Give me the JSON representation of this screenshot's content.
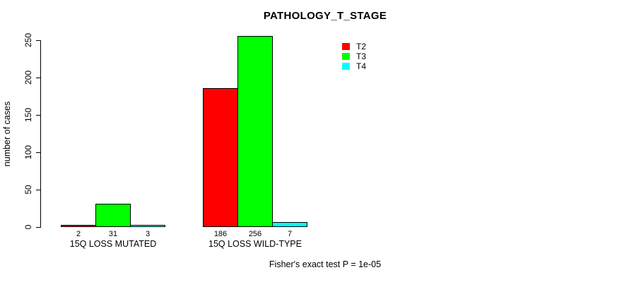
{
  "chart_data": {
    "type": "bar",
    "title": "PATHOLOGY_T_STAGE",
    "ylabel": "number of cases",
    "xlabel": "",
    "categories": [
      "15Q LOSS MUTATED",
      "15Q LOSS WILD-TYPE"
    ],
    "series": [
      {
        "name": "T2",
        "color": "#FF0000",
        "values": [
          2,
          186
        ]
      },
      {
        "name": "T3",
        "color": "#00FF00",
        "values": [
          31,
          256
        ]
      },
      {
        "name": "T4",
        "color": "#00FFFF",
        "values": [
          3,
          7
        ]
      }
    ],
    "yticks": [
      0,
      50,
      100,
      150,
      200,
      250
    ],
    "ylim": [
      0,
      265
    ],
    "grid": false,
    "legend_position": "top-right",
    "bar_border_color": "#000000",
    "background_color": "#FFFFFF",
    "caption": "Fisher's exact test P = 1e-05"
  }
}
